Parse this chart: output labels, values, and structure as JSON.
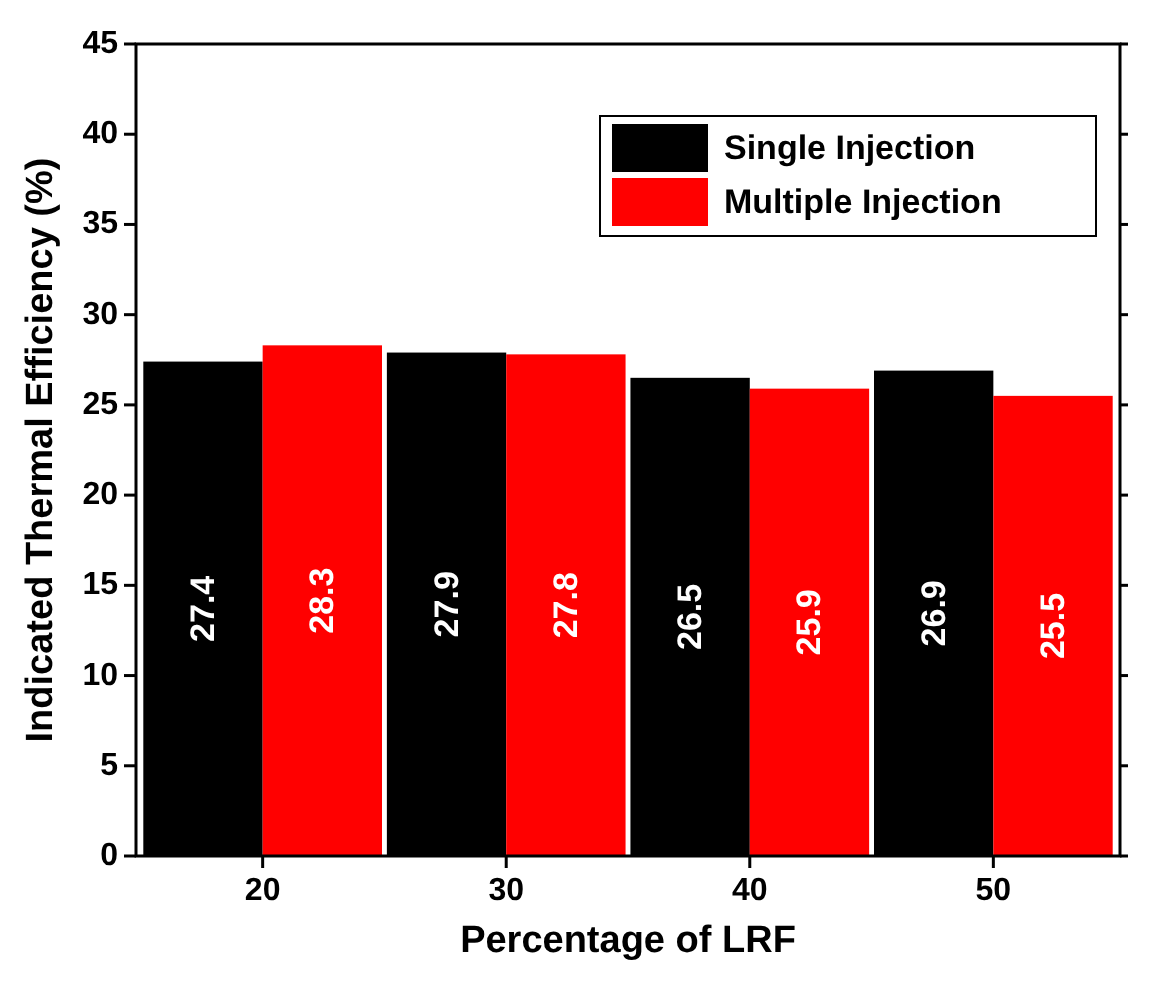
{
  "chart_data": {
    "type": "bar",
    "xlabel": "Percentage of LRF",
    "ylabel": "Indicated Thermal Efficiency (%)",
    "categories": [
      "20",
      "30",
      "40",
      "50"
    ],
    "series": [
      {
        "name": "Single Injection",
        "color": "#000000",
        "values": [
          27.4,
          27.9,
          26.5,
          26.9
        ]
      },
      {
        "name": "Multiple Injection",
        "color": "#ff0000",
        "values": [
          28.3,
          27.8,
          25.9,
          25.5
        ]
      }
    ],
    "ylim": [
      0,
      45
    ],
    "yticks": [
      0,
      5,
      10,
      15,
      20,
      25,
      30,
      35,
      40,
      45
    ],
    "data_labels": true,
    "legend": "top right",
    "grid": false
  }
}
